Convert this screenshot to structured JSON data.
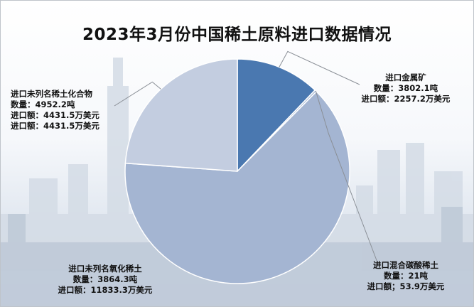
{
  "chart_data": {
    "type": "pie",
    "title": "2023年3月份中国稀土原料进口数据情况",
    "series_colors": [
      "#4a78b0",
      "#a4b5d2",
      "#c3cde0",
      "#6e8fc0"
    ],
    "slices": [
      {
        "name": "进口金属矿",
        "value": 2257.2,
        "line1": "数量：3802.1吨",
        "line2": "进口额：2257.2万美元",
        "line3": ""
      },
      {
        "name": "进口混合碳酸稀土",
        "value": 53.9,
        "line1": "数量：21吨",
        "line2": "进口额；53.9万美元",
        "line3": ""
      },
      {
        "name": "进口未列名氧化稀土",
        "value": 11833.3,
        "line1": "数量：3864.3吨",
        "line2": "进口额：11833.3万美元",
        "line3": ""
      },
      {
        "name": "进口未列名稀土化合物",
        "value": 4431.5,
        "line1": "数量：4952.2吨",
        "line2": "进口额：4431.5万美元",
        "line3": "进口额：4431.5万美元"
      }
    ]
  }
}
